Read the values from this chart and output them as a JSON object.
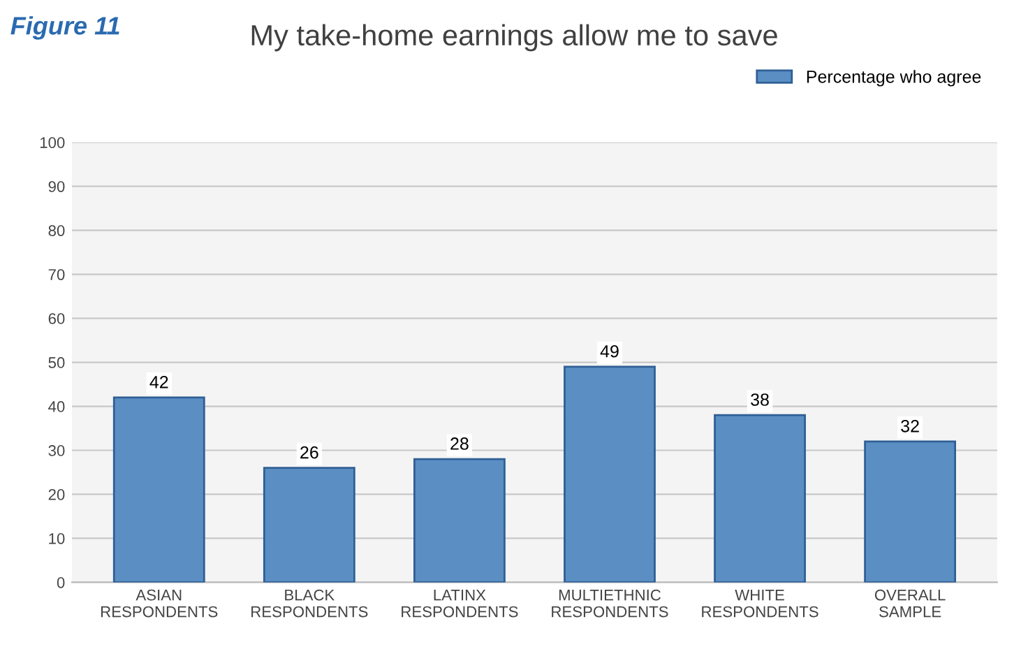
{
  "chart_data": {
    "type": "bar",
    "title": "My take-home earnings allow me to save",
    "annotations": [
      "Figure 11"
    ],
    "categories": [
      "ASIAN\nRESPONDENTS",
      "BLACK\nRESPONDENTS",
      "LATINX\nRESPONDENTS",
      "MULTIETHNIC\nRESPONDENTS",
      "WHITE\nRESPONDENTS",
      "OVERALL\nSAMPLE"
    ],
    "series": [
      {
        "name": "Percentage who agree",
        "color": "#5b8fc4",
        "values": [
          42,
          26,
          28,
          49,
          38,
          32
        ]
      }
    ],
    "ylim": [
      0,
      100
    ],
    "yticks": [
      0,
      10,
      20,
      30,
      40,
      50,
      60,
      70,
      80,
      90,
      100
    ],
    "grid": "y",
    "legend": "top right",
    "data_labels": true
  }
}
